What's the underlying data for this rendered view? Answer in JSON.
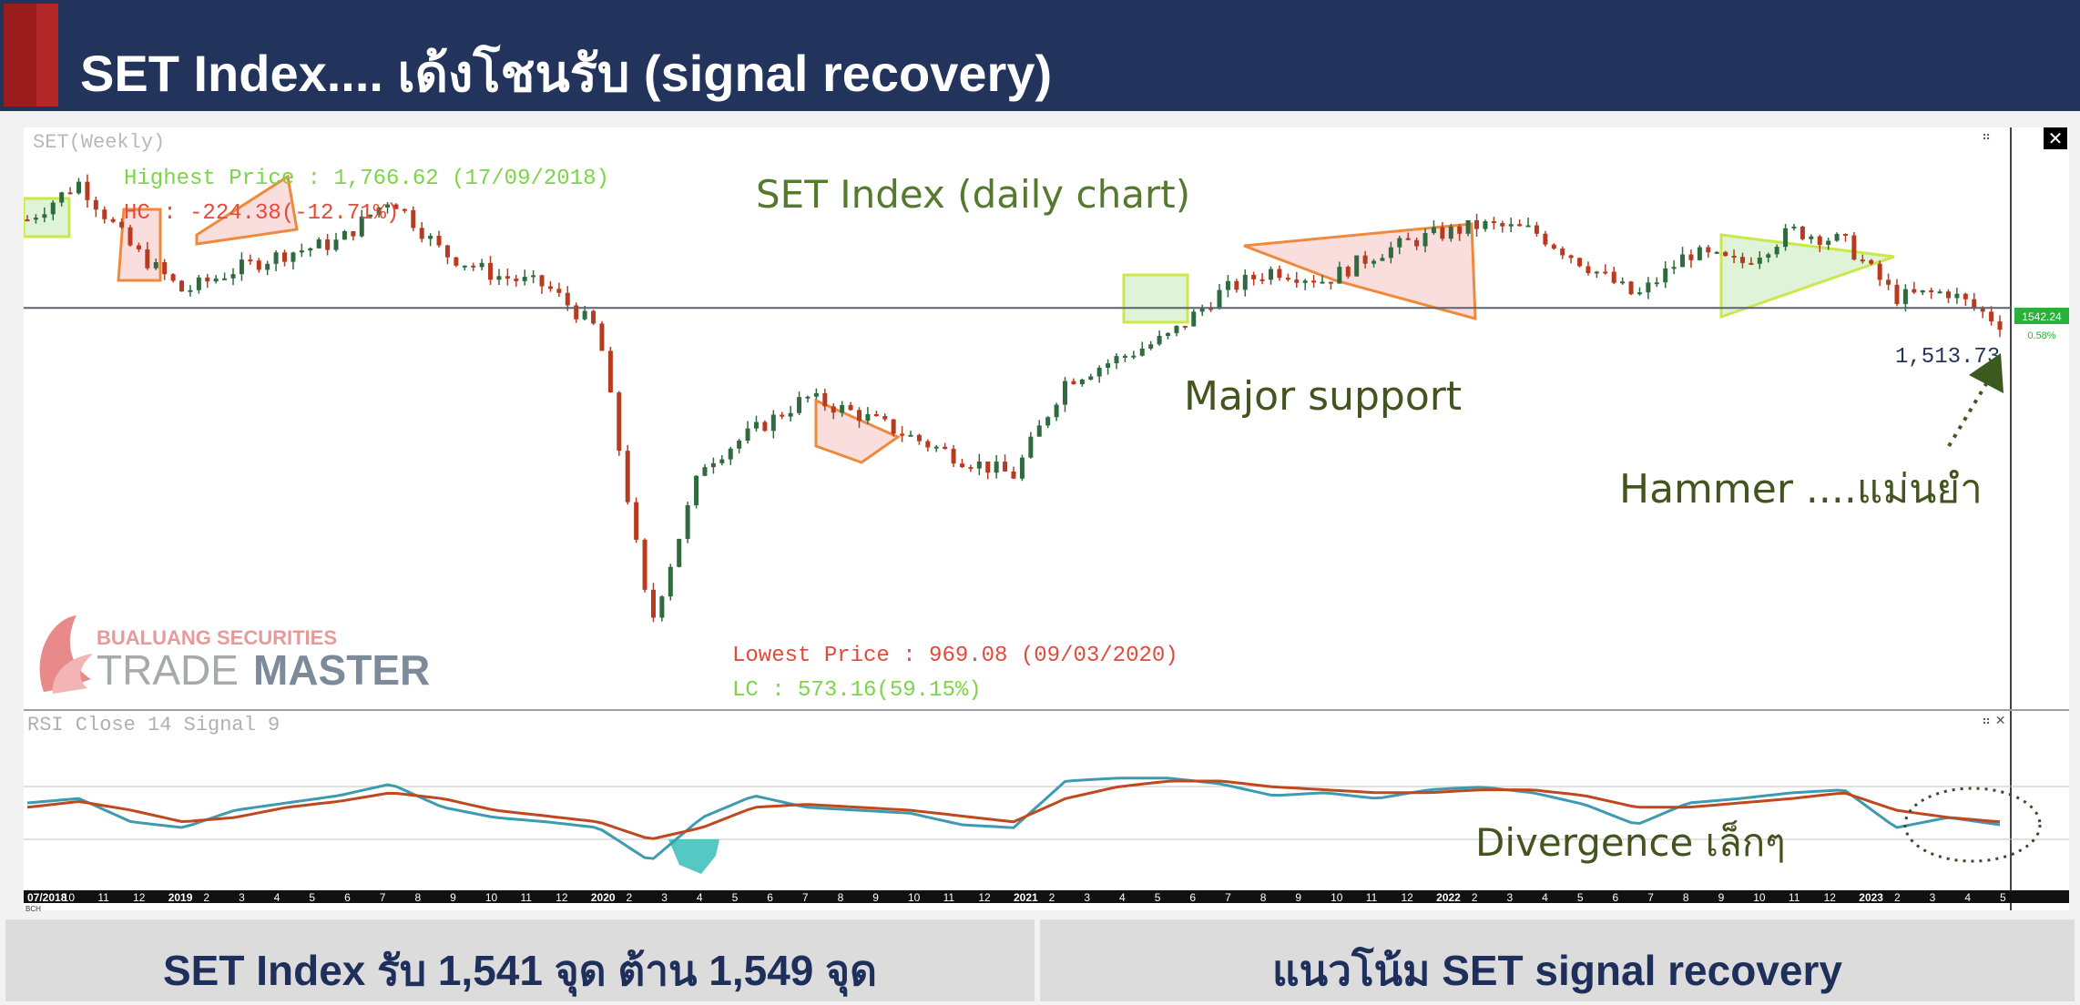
{
  "header": {
    "title": "SET Index.... เด้งโชนรับ (signal recovery)"
  },
  "chart": {
    "panel_label": "SET(Weekly)",
    "title": "SET Index (daily chart)",
    "highest_label": "Highest Price : 1,766.62 (17/09/2018)",
    "hc_label": "HC : -224.38(-12.71%)",
    "lowest_label": "Lowest Price : 969.08 (09/03/2020)",
    "lc_label": "LC : 573.16(59.15%)",
    "support_label": "Major support",
    "hammer_label": "Hammer ....แม่นยำ",
    "last_price_label": "1,513.73",
    "price_tag": "1542.24",
    "pct_tag": "0.58%",
    "rsi_label": "RSI Close 14 Signal 9",
    "divergence_label": "Divergence เล็กๆ",
    "logo_top": "BUALUANG SECURITIES",
    "logo_trade": "TRADE",
    "logo_master": "MASTER",
    "close_symbol": "✕",
    "tick_labels": [
      "07/2018",
      "10",
      "11",
      "12",
      "2019",
      "2",
      "3",
      "4",
      "5",
      "6",
      "7",
      "8",
      "9",
      "10",
      "11",
      "12",
      "2020",
      "2",
      "3",
      "4",
      "5",
      "6",
      "7",
      "8",
      "9",
      "10",
      "11",
      "12",
      "2021",
      "2",
      "3",
      "4",
      "5",
      "6",
      "7",
      "8",
      "9",
      "10",
      "11",
      "12",
      "2022",
      "2",
      "3",
      "4",
      "5",
      "6",
      "7",
      "8",
      "9",
      "10",
      "11",
      "12",
      "2023",
      "2",
      "3",
      "4",
      "5"
    ],
    "bch": "BCH"
  },
  "chart_data": {
    "type": "line",
    "title": "SET Index (daily chart)",
    "x": [
      "2018-07",
      "2018-09",
      "2018-10",
      "2018-12",
      "2019-02",
      "2019-04",
      "2019-06",
      "2019-07",
      "2019-09",
      "2019-11",
      "2020-01",
      "2020-02",
      "2020-03",
      "2020-04",
      "2020-05",
      "2020-06",
      "2020-07",
      "2020-08",
      "2020-09",
      "2020-10",
      "2020-11",
      "2020-12",
      "2021-02",
      "2021-04",
      "2021-06",
      "2021-08",
      "2021-10",
      "2021-12",
      "2022-01",
      "2022-03",
      "2022-05",
      "2022-07",
      "2022-09",
      "2022-11",
      "2023-01",
      "2023-02",
      "2023-03",
      "2023-04",
      "2023-05"
    ],
    "series": [
      {
        "values": [
          1700,
          1766.62,
          1650,
          1570,
          1610,
          1640,
          1660,
          1740,
          1640,
          1600,
          1580,
          1500,
          969.08,
          1260,
          1320,
          1380,
          1350,
          1310,
          1270,
          1240,
          1410,
          1450,
          1490,
          1570,
          1610,
          1590,
          1640,
          1670,
          1690,
          1680,
          1620,
          1560,
          1640,
          1620,
          1680,
          1660,
          1560,
          1570,
          1513.73
        ]
      }
    ],
    "rsi": {
      "name": "RSI Close 14 Signal 9",
      "ylim": [
        0,
        100
      ],
      "rsi_values": [
        55,
        58,
        42,
        38,
        50,
        55,
        60,
        68,
        52,
        45,
        42,
        38,
        15,
        45,
        60,
        52,
        50,
        48,
        40,
        38,
        70,
        72,
        72,
        68,
        60,
        62,
        58,
        64,
        66,
        62,
        54,
        40,
        55,
        58,
        62,
        64,
        38,
        45,
        40
      ],
      "signal_values": [
        52,
        56,
        50,
        42,
        45,
        52,
        56,
        62,
        58,
        50,
        46,
        42,
        30,
        38,
        52,
        54,
        52,
        50,
        46,
        42,
        58,
        66,
        70,
        70,
        66,
        64,
        62,
        62,
        64,
        64,
        60,
        52,
        52,
        55,
        58,
        62,
        50,
        45,
        42
      ]
    },
    "major_support": 1541,
    "ylim": [
      900,
      1800
    ],
    "xlabel": "",
    "ylabel": ""
  },
  "footer": {
    "left": "SET Index รับ 1,541 จุด ต้าน 1,549 จุด",
    "right": "แนวโน้ม SET signal recovery"
  }
}
